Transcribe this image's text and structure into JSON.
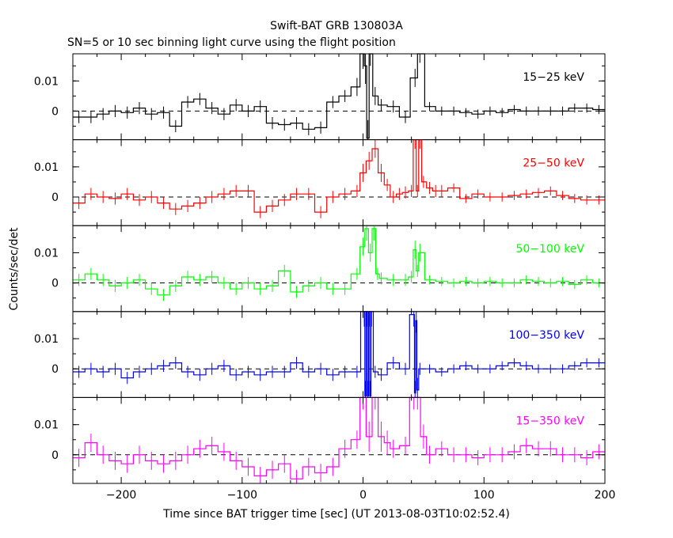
{
  "chart_data": {
    "type": "line",
    "title": "Swift-BAT GRB 130803A",
    "subtitle": "SN=5 or 10 sec binning light curve using the flight position",
    "xlabel": "Time since BAT trigger time [sec] (UT 2013-08-03T10:02:52.4)",
    "ylabel": "Counts/sec/det",
    "xlim": [
      -240,
      200
    ],
    "ylim": [
      -0.0095,
      0.019
    ],
    "x_ticks": [
      "−200",
      "−100",
      "0",
      "100",
      "200"
    ],
    "y_ticks": [
      "0.01",
      "0"
    ],
    "x_tick_values": [
      -200,
      -100,
      0,
      100,
      200
    ],
    "y_tick_values": [
      0.01,
      0
    ],
    "panels": [
      {
        "name": "15−25 keV",
        "color": "#000000",
        "x": [
          -235,
          -225,
          -215,
          -205,
          -195,
          -185,
          -175,
          -165,
          -155,
          -145,
          -135,
          -125,
          -115,
          -105,
          -95,
          -85,
          -75,
          -65,
          -55,
          -45,
          -35,
          -25,
          -15,
          -5,
          0,
          2,
          4,
          6,
          10,
          15,
          25,
          35,
          43,
          47,
          55,
          65,
          75,
          85,
          95,
          105,
          115,
          125,
          135,
          145,
          155,
          165,
          175,
          185,
          195
        ],
        "y": [
          -0.002,
          -0.002,
          -0.001,
          0.0,
          -0.0005,
          0.001,
          -0.001,
          -0.0005,
          -0.005,
          0.003,
          0.004,
          0.001,
          -0.001,
          0.002,
          0.0,
          0.0015,
          -0.004,
          -0.0045,
          -0.004,
          -0.006,
          -0.0055,
          0.003,
          0.005,
          0.008,
          0.02,
          0.015,
          -0.009,
          0.02,
          0.005,
          0.002,
          0.0015,
          -0.002,
          0.011,
          0.02,
          0.0015,
          0.0,
          0.0,
          -0.0005,
          -0.001,
          0.0,
          -0.0005,
          0.0005,
          0.0,
          0.0,
          0.0,
          0.0,
          0.001,
          0.001,
          0.0005
        ],
        "errors": [
          0.002,
          0.002,
          0.002,
          0.002,
          0.002,
          0.002,
          0.002,
          0.002,
          0.002,
          0.002,
          0.002,
          0.002,
          0.002,
          0.002,
          0.002,
          0.002,
          0.002,
          0.002,
          0.002,
          0.002,
          0.002,
          0.002,
          0.002,
          0.003,
          0.006,
          0.006,
          0.006,
          0.005,
          0.003,
          0.002,
          0.002,
          0.002,
          0.003,
          0.004,
          0.0015,
          0.0015,
          0.0015,
          0.0015,
          0.0015,
          0.0015,
          0.0015,
          0.0015,
          0.0015,
          0.0015,
          0.0015,
          0.0015,
          0.0015,
          0.0015,
          0.0015
        ]
      },
      {
        "name": "25−50 keV",
        "color": "#ff0000",
        "x": [
          -235,
          -225,
          -215,
          -205,
          -195,
          -185,
          -175,
          -165,
          -155,
          -145,
          -135,
          -125,
          -115,
          -105,
          -95,
          -85,
          -75,
          -65,
          -55,
          -45,
          -35,
          -25,
          -15,
          -5,
          0,
          5,
          10,
          15,
          20,
          25,
          30,
          35,
          40,
          43,
          45,
          47,
          50,
          55,
          60,
          65,
          75,
          85,
          95,
          105,
          115,
          125,
          135,
          145,
          155,
          165,
          175,
          185,
          195
        ],
        "y": [
          -0.002,
          0.001,
          0.0,
          -0.0005,
          0.001,
          -0.001,
          0.0,
          -0.002,
          -0.004,
          -0.003,
          -0.002,
          0.0,
          0.001,
          0.002,
          0.002,
          -0.005,
          -0.003,
          -0.001,
          0.001,
          0.001,
          -0.005,
          0.0,
          0.001,
          0.002,
          0.008,
          0.012,
          0.016,
          0.008,
          0.004,
          0.0,
          0.001,
          0.0015,
          0.002,
          0.019,
          0.002,
          0.019,
          0.005,
          0.003,
          0.002,
          0.002,
          0.003,
          -0.0005,
          0.001,
          0.0,
          0.0,
          0.0005,
          0.001,
          0.0015,
          0.002,
          0.0005,
          -0.0005,
          -0.001,
          -0.001
        ],
        "errors": [
          0.002,
          0.002,
          0.002,
          0.002,
          0.002,
          0.002,
          0.002,
          0.002,
          0.002,
          0.002,
          0.002,
          0.002,
          0.002,
          0.002,
          0.002,
          0.002,
          0.002,
          0.002,
          0.002,
          0.002,
          0.002,
          0.002,
          0.002,
          0.002,
          0.003,
          0.003,
          0.003,
          0.003,
          0.002,
          0.002,
          0.002,
          0.002,
          0.002,
          0.003,
          0.002,
          0.003,
          0.002,
          0.002,
          0.002,
          0.002,
          0.0015,
          0.0015,
          0.0015,
          0.0015,
          0.0015,
          0.0015,
          0.0015,
          0.0015,
          0.0015,
          0.0015,
          0.0015,
          0.0015,
          0.0015
        ]
      },
      {
        "name": "50−100 keV",
        "color": "#00ff00",
        "x": [
          -235,
          -225,
          -215,
          -205,
          -195,
          -185,
          -175,
          -165,
          -155,
          -145,
          -135,
          -125,
          -115,
          -105,
          -95,
          -85,
          -75,
          -65,
          -55,
          -45,
          -35,
          -25,
          -15,
          -5,
          0,
          3,
          6,
          9,
          12,
          15,
          25,
          35,
          40,
          43,
          45,
          47,
          55,
          65,
          75,
          85,
          95,
          105,
          115,
          125,
          135,
          145,
          155,
          165,
          175,
          185,
          195
        ],
        "y": [
          0.001,
          0.003,
          0.001,
          -0.001,
          0.0,
          0.001,
          -0.002,
          -0.004,
          -0.001,
          0.002,
          0.001,
          0.002,
          0.0,
          -0.002,
          0.0,
          -0.002,
          -0.001,
          0.004,
          -0.003,
          -0.001,
          0.0,
          -0.002,
          -0.002,
          0.003,
          0.012,
          0.018,
          0.01,
          0.018,
          0.003,
          0.0015,
          0.001,
          0.001,
          0.002,
          0.011,
          0.004,
          0.01,
          0.001,
          0.0005,
          0.0,
          0.0005,
          0.0,
          0.0005,
          0.0,
          0.0,
          0.001,
          0.0005,
          0.0,
          0.0005,
          -0.0005,
          0.001,
          0.0
        ],
        "errors": [
          0.002,
          0.002,
          0.002,
          0.002,
          0.002,
          0.002,
          0.002,
          0.002,
          0.002,
          0.002,
          0.002,
          0.002,
          0.002,
          0.002,
          0.002,
          0.002,
          0.002,
          0.002,
          0.002,
          0.002,
          0.002,
          0.002,
          0.002,
          0.002,
          0.003,
          0.004,
          0.003,
          0.004,
          0.002,
          0.002,
          0.002,
          0.002,
          0.002,
          0.003,
          0.002,
          0.003,
          0.0015,
          0.0015,
          0.0015,
          0.0015,
          0.0015,
          0.0015,
          0.0015,
          0.0015,
          0.0015,
          0.0015,
          0.0015,
          0.0015,
          0.0015,
          0.0015,
          0.0015
        ]
      },
      {
        "name": "100−350 keV",
        "color": "#0000ff",
        "x": [
          -235,
          -225,
          -215,
          -205,
          -195,
          -185,
          -175,
          -165,
          -155,
          -145,
          -135,
          -125,
          -115,
          -105,
          -95,
          -85,
          -75,
          -65,
          -55,
          -45,
          -35,
          -25,
          -15,
          -5,
          1,
          2,
          3,
          4,
          5,
          6,
          7,
          10,
          15,
          25,
          35,
          42,
          43,
          44,
          45,
          47,
          55,
          65,
          75,
          85,
          95,
          105,
          115,
          125,
          135,
          145,
          155,
          165,
          175,
          185,
          195
        ],
        "y": [
          -0.001,
          0.0,
          -0.001,
          0.0,
          -0.003,
          -0.001,
          0.0,
          0.001,
          0.002,
          -0.001,
          -0.002,
          0.0,
          0.001,
          -0.002,
          -0.001,
          -0.002,
          -0.001,
          -0.001,
          0.002,
          -0.001,
          0.0,
          -0.002,
          -0.001,
          -0.001,
          0.019,
          -0.009,
          0.019,
          -0.009,
          0.019,
          -0.009,
          0.019,
          -0.001,
          -0.002,
          0.002,
          0.0,
          0.018,
          -0.008,
          0.016,
          -0.007,
          0.0,
          0.0,
          -0.001,
          0.0,
          0.001,
          0.0,
          0.0,
          0.001,
          0.002,
          0.001,
          0.0,
          0.0,
          0.0,
          0.001,
          0.002,
          0.002
        ],
        "errors": [
          0.002,
          0.002,
          0.002,
          0.002,
          0.002,
          0.002,
          0.002,
          0.002,
          0.002,
          0.002,
          0.002,
          0.002,
          0.002,
          0.002,
          0.002,
          0.002,
          0.002,
          0.002,
          0.002,
          0.002,
          0.002,
          0.002,
          0.002,
          0.002,
          0.005,
          0.005,
          0.005,
          0.005,
          0.005,
          0.005,
          0.005,
          0.002,
          0.002,
          0.002,
          0.002,
          0.004,
          0.004,
          0.004,
          0.004,
          0.002,
          0.0015,
          0.0015,
          0.0015,
          0.0015,
          0.0015,
          0.0015,
          0.0015,
          0.0015,
          0.0015,
          0.0015,
          0.0015,
          0.0015,
          0.0015,
          0.0015,
          0.0015
        ]
      },
      {
        "name": "15−350 keV",
        "color": "#ff00ff",
        "x": [
          -235,
          -225,
          -215,
          -205,
          -195,
          -185,
          -175,
          -165,
          -155,
          -145,
          -135,
          -125,
          -115,
          -105,
          -95,
          -85,
          -75,
          -65,
          -55,
          -45,
          -35,
          -25,
          -15,
          -5,
          0,
          5,
          10,
          15,
          20,
          25,
          35,
          42,
          45,
          50,
          55,
          65,
          75,
          85,
          95,
          105,
          115,
          125,
          135,
          145,
          155,
          165,
          175,
          185,
          195
        ],
        "y": [
          -0.001,
          0.004,
          0.0,
          -0.002,
          -0.003,
          0.0,
          -0.002,
          -0.003,
          -0.002,
          0.0,
          0.002,
          0.003,
          0.001,
          -0.002,
          -0.004,
          -0.007,
          -0.005,
          -0.003,
          -0.008,
          -0.004,
          -0.006,
          -0.004,
          0.002,
          0.005,
          0.02,
          0.006,
          0.02,
          0.006,
          0.004,
          0.002,
          0.003,
          0.02,
          0.02,
          0.006,
          0.0,
          0.002,
          0.0,
          0.0,
          -0.001,
          0.0,
          0.0,
          0.001,
          0.003,
          0.002,
          0.002,
          0.0,
          0.0,
          -0.001,
          0.001
        ],
        "errors": [
          0.003,
          0.003,
          0.003,
          0.003,
          0.003,
          0.003,
          0.003,
          0.003,
          0.003,
          0.003,
          0.003,
          0.003,
          0.003,
          0.003,
          0.003,
          0.003,
          0.003,
          0.003,
          0.003,
          0.003,
          0.003,
          0.003,
          0.003,
          0.003,
          0.005,
          0.005,
          0.005,
          0.005,
          0.004,
          0.003,
          0.003,
          0.005,
          0.005,
          0.004,
          0.003,
          0.0025,
          0.0025,
          0.0025,
          0.0025,
          0.0025,
          0.0025,
          0.0025,
          0.0025,
          0.0025,
          0.0025,
          0.0025,
          0.0025,
          0.0025,
          0.0025
        ]
      }
    ]
  }
}
